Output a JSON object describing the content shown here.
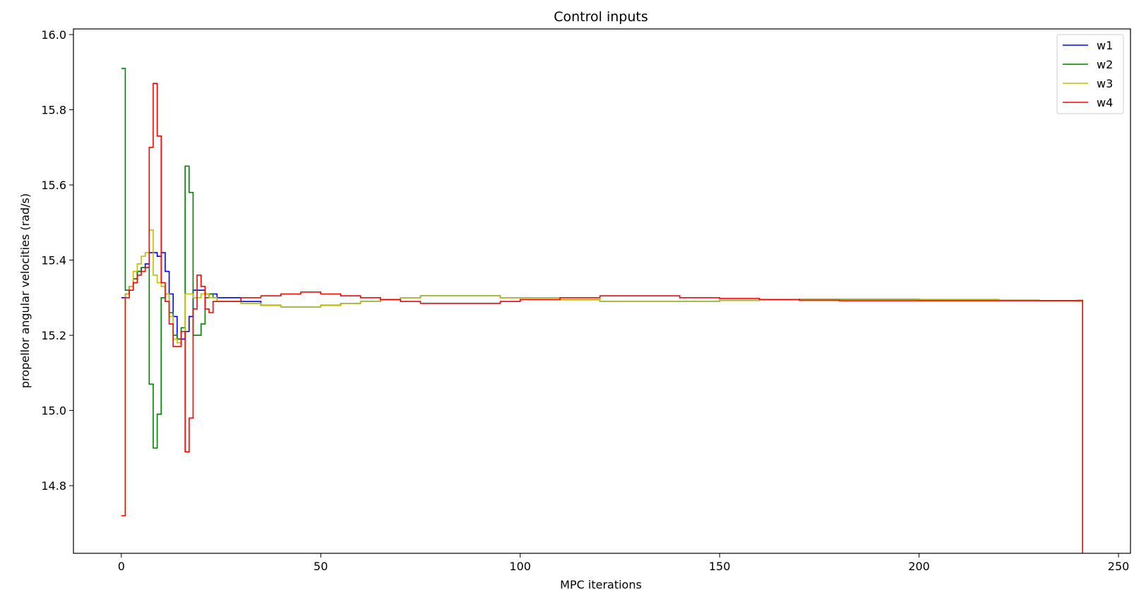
{
  "chart_data": {
    "type": "line",
    "title": "Control inputs",
    "xlabel": "MPC iterations",
    "ylabel": "propellor angular velocities (rad/s)",
    "xlim": [
      -12,
      253
    ],
    "ylim": [
      14.62,
      16.015
    ],
    "xticks": [
      0,
      50,
      100,
      150,
      200,
      250
    ],
    "yticks": [
      14.8,
      15.0,
      15.2,
      15.4,
      15.6,
      15.8,
      16.0
    ],
    "xtick_labels": [
      "0",
      "50",
      "100",
      "150",
      "200",
      "250"
    ],
    "ytick_labels": [
      "14.8",
      "15.0",
      "15.2",
      "15.4",
      "15.6",
      "15.8",
      "16.0"
    ],
    "step": true,
    "grid": false,
    "legend_position": "top-right",
    "series": [
      {
        "name": "w1",
        "color": "#0000ff",
        "x": [
          0,
          1,
          2,
          3,
          4,
          5,
          6,
          7,
          8,
          9,
          10,
          11,
          12,
          13,
          14,
          15,
          16,
          17,
          18,
          19,
          20,
          21,
          22,
          23,
          24,
          25,
          30,
          35,
          40,
          45,
          50,
          55,
          60,
          65,
          70,
          75,
          80,
          85,
          90,
          95,
          100,
          105,
          110,
          115,
          120,
          125,
          130,
          140,
          150,
          160,
          170,
          180,
          190,
          200,
          210,
          220,
          230,
          240,
          241
        ],
        "y": [
          15.3,
          15.31,
          15.33,
          15.35,
          15.37,
          15.38,
          15.39,
          15.42,
          15.42,
          15.41,
          15.42,
          15.37,
          15.31,
          15.25,
          15.19,
          15.19,
          15.21,
          15.25,
          15.32,
          15.32,
          15.32,
          15.31,
          15.31,
          15.31,
          15.3,
          15.3,
          15.29,
          15.28,
          15.275,
          15.275,
          15.28,
          15.285,
          15.29,
          15.295,
          15.3,
          15.305,
          15.305,
          15.305,
          15.305,
          15.3,
          15.3,
          15.3,
          15.295,
          15.295,
          15.29,
          15.29,
          15.29,
          15.29,
          15.293,
          15.295,
          15.296,
          15.296,
          15.296,
          15.295,
          15.295,
          15.293,
          15.292,
          15.29,
          15.29
        ]
      },
      {
        "name": "w2",
        "color": "#008000",
        "x": [
          0,
          1,
          2,
          3,
          4,
          5,
          6,
          7,
          8,
          9,
          10,
          11,
          12,
          13,
          14,
          15,
          16,
          17,
          18,
          19,
          20,
          21,
          22,
          23,
          24,
          25,
          30,
          35,
          40,
          45,
          50,
          55,
          60,
          65,
          70,
          75,
          80,
          85,
          90,
          95,
          100,
          105,
          110,
          115,
          120,
          125,
          130,
          140,
          150,
          160,
          170,
          180,
          190,
          200,
          210,
          220,
          230,
          240,
          241
        ],
        "y": [
          15.91,
          15.32,
          15.33,
          15.35,
          15.37,
          15.38,
          15.38,
          15.07,
          14.9,
          14.99,
          15.3,
          15.31,
          15.26,
          15.2,
          15.19,
          15.22,
          15.65,
          15.58,
          15.2,
          15.2,
          15.23,
          15.3,
          15.31,
          15.3,
          15.29,
          15.29,
          15.285,
          15.28,
          15.275,
          15.275,
          15.28,
          15.285,
          15.29,
          15.295,
          15.3,
          15.305,
          15.305,
          15.305,
          15.305,
          15.3,
          15.3,
          15.3,
          15.295,
          15.295,
          15.29,
          15.29,
          15.29,
          15.29,
          15.293,
          15.295,
          15.296,
          15.296,
          15.296,
          15.295,
          15.295,
          15.293,
          15.292,
          15.29,
          15.29
        ]
      },
      {
        "name": "w3",
        "color": "#bfbf00",
        "x": [
          0,
          1,
          2,
          3,
          4,
          5,
          6,
          7,
          8,
          9,
          10,
          11,
          12,
          13,
          14,
          15,
          16,
          17,
          18,
          19,
          20,
          21,
          22,
          23,
          24,
          25,
          30,
          35,
          40,
          45,
          50,
          55,
          60,
          65,
          70,
          75,
          80,
          85,
          90,
          95,
          100,
          105,
          110,
          115,
          120,
          125,
          130,
          140,
          150,
          160,
          170,
          180,
          190,
          200,
          210,
          220,
          230,
          240,
          241
        ],
        "y": [
          14.72,
          15.31,
          15.33,
          15.37,
          15.39,
          15.41,
          15.42,
          15.48,
          15.36,
          15.34,
          15.33,
          15.31,
          15.25,
          15.19,
          15.18,
          15.21,
          15.31,
          15.31,
          15.3,
          15.3,
          15.31,
          15.31,
          15.3,
          15.3,
          15.29,
          15.29,
          15.285,
          15.28,
          15.275,
          15.275,
          15.28,
          15.285,
          15.29,
          15.295,
          15.3,
          15.305,
          15.305,
          15.305,
          15.305,
          15.3,
          15.3,
          15.3,
          15.295,
          15.295,
          15.29,
          15.29,
          15.29,
          15.29,
          15.293,
          15.295,
          15.296,
          15.296,
          15.296,
          15.295,
          15.295,
          15.293,
          15.292,
          15.29,
          15.29
        ]
      },
      {
        "name": "w4",
        "color": "#ff0000",
        "x": [
          0,
          1,
          2,
          3,
          4,
          5,
          6,
          7,
          8,
          9,
          10,
          11,
          12,
          13,
          14,
          15,
          16,
          17,
          18,
          19,
          20,
          21,
          22,
          23,
          24,
          25,
          30,
          35,
          40,
          45,
          50,
          55,
          60,
          65,
          70,
          75,
          80,
          85,
          90,
          95,
          100,
          105,
          110,
          115,
          120,
          125,
          130,
          140,
          150,
          160,
          170,
          180,
          190,
          200,
          210,
          220,
          230,
          240,
          241
        ],
        "y": [
          14.72,
          15.3,
          15.32,
          15.34,
          15.36,
          15.37,
          15.38,
          15.7,
          15.87,
          15.73,
          15.34,
          15.29,
          15.23,
          15.17,
          15.17,
          15.21,
          14.89,
          14.98,
          15.27,
          15.36,
          15.33,
          15.27,
          15.26,
          15.29,
          15.29,
          15.29,
          15.3,
          15.305,
          15.31,
          15.315,
          15.31,
          15.305,
          15.3,
          15.295,
          15.29,
          15.285,
          15.285,
          15.285,
          15.285,
          15.29,
          15.295,
          15.295,
          15.3,
          15.3,
          15.305,
          15.305,
          15.305,
          15.3,
          15.298,
          15.295,
          15.293,
          15.292,
          15.292,
          15.292,
          15.292,
          15.292,
          15.292,
          15.293,
          14.62
        ]
      }
    ]
  }
}
